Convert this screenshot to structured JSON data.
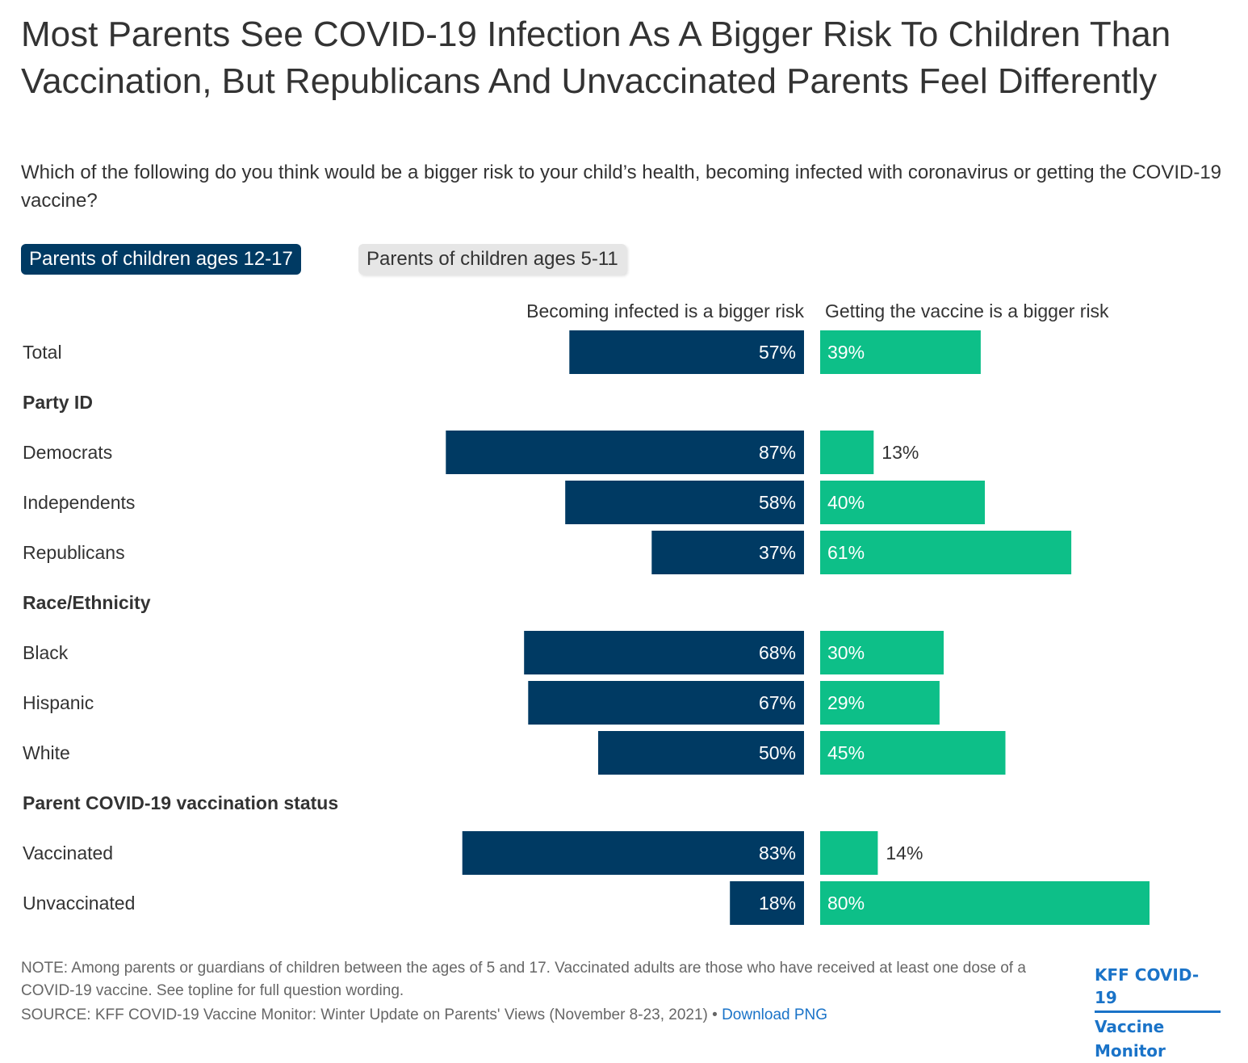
{
  "title": "Most Parents See COVID-19 Infection As A Bigger Risk To Children Than Vaccination, But Republicans And Unvaccinated Parents Feel Differently",
  "subtitle": "Which of the following do you think would be a bigger risk to your child’s health, becoming infected with coronavirus or getting the COVID-19 vaccine?",
  "tabs": [
    {
      "label": "Parents of children ages 12-17",
      "active": true
    },
    {
      "label": "Parents of children ages 5-11",
      "active": false
    }
  ],
  "colors": {
    "infected": "#003a63",
    "vaccine": "#0dbf88",
    "text": "#333333"
  },
  "chart_data": {
    "type": "bar",
    "orientation": "horizontal-diverging",
    "series": [
      {
        "name": "Becoming infected is a bigger risk",
        "values": [
          57,
          87,
          58,
          37,
          68,
          67,
          50,
          83,
          18
        ]
      },
      {
        "name": "Getting the vaccine is a bigger risk",
        "values": [
          39,
          13,
          40,
          61,
          30,
          29,
          45,
          14,
          80
        ]
      }
    ],
    "categories": [
      "Total",
      "Democrats",
      "Independents",
      "Republicans",
      "Black",
      "Hispanic",
      "White",
      "Vaccinated",
      "Unvaccinated"
    ],
    "rows": [
      {
        "type": "bar",
        "label": "Total",
        "infected": 57,
        "vaccine": 39
      },
      {
        "type": "group",
        "label": "Party ID"
      },
      {
        "type": "bar",
        "label": "Democrats",
        "infected": 87,
        "vaccine": 13
      },
      {
        "type": "bar",
        "label": "Independents",
        "infected": 58,
        "vaccine": 40
      },
      {
        "type": "bar",
        "label": "Republicans",
        "infected": 37,
        "vaccine": 61
      },
      {
        "type": "group",
        "label": "Race/Ethnicity"
      },
      {
        "type": "bar",
        "label": "Black",
        "infected": 68,
        "vaccine": 30
      },
      {
        "type": "bar",
        "label": "Hispanic",
        "infected": 67,
        "vaccine": 29
      },
      {
        "type": "bar",
        "label": "White",
        "infected": 50,
        "vaccine": 45
      },
      {
        "type": "group",
        "label": "Parent COVID-19 vaccination status"
      },
      {
        "type": "bar",
        "label": "Vaccinated",
        "infected": 83,
        "vaccine": 14
      },
      {
        "type": "bar",
        "label": "Unvaccinated",
        "infected": 18,
        "vaccine": 80
      }
    ],
    "value_suffix": "%",
    "xlim": [
      0,
      100
    ]
  },
  "note": "NOTE: Among parents or guardians of children between the ages of 5 and 17. Vaccinated adults are those who have received at least one dose of a COVID-19 vaccine. See topline for full question wording.",
  "source": "SOURCE: KFF COVID-19 Vaccine Monitor: Winter Update on Parents' Views (November 8-23, 2021) •",
  "download_label": "Download PNG",
  "logo": {
    "line1": "KFF COVID-19",
    "line2": "Vaccine Monitor"
  }
}
